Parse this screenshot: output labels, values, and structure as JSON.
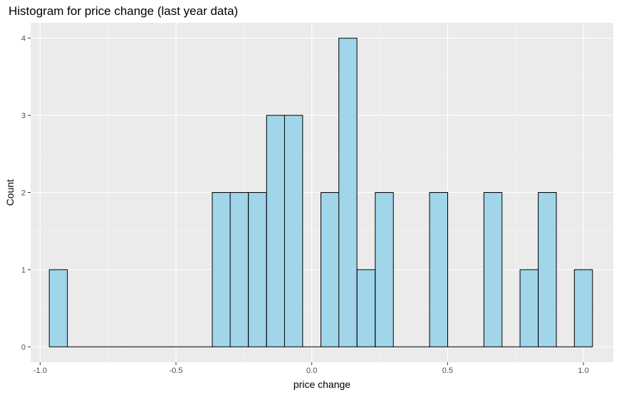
{
  "chart_data": {
    "type": "bar",
    "title": "Histogram for price change (last year data)",
    "xlabel": "price change",
    "ylabel": "Count",
    "bin_width": 0.0667,
    "bins": [
      {
        "x": -0.933,
        "count": 1
      },
      {
        "x": -0.867,
        "count": 0
      },
      {
        "x": -0.8,
        "count": 0
      },
      {
        "x": -0.733,
        "count": 0
      },
      {
        "x": -0.667,
        "count": 0
      },
      {
        "x": -0.6,
        "count": 0
      },
      {
        "x": -0.533,
        "count": 0
      },
      {
        "x": -0.467,
        "count": 0
      },
      {
        "x": -0.4,
        "count": 0
      },
      {
        "x": -0.333,
        "count": 2
      },
      {
        "x": -0.267,
        "count": 2
      },
      {
        "x": -0.2,
        "count": 2
      },
      {
        "x": -0.133,
        "count": 3
      },
      {
        "x": -0.067,
        "count": 3
      },
      {
        "x": 0.0,
        "count": 0
      },
      {
        "x": 0.067,
        "count": 2
      },
      {
        "x": 0.133,
        "count": 4
      },
      {
        "x": 0.2,
        "count": 1
      },
      {
        "x": 0.267,
        "count": 2
      },
      {
        "x": 0.333,
        "count": 0
      },
      {
        "x": 0.4,
        "count": 0
      },
      {
        "x": 0.467,
        "count": 2
      },
      {
        "x": 0.533,
        "count": 0
      },
      {
        "x": 0.6,
        "count": 0
      },
      {
        "x": 0.667,
        "count": 2
      },
      {
        "x": 0.733,
        "count": 0
      },
      {
        "x": 0.8,
        "count": 1
      },
      {
        "x": 0.867,
        "count": 2
      },
      {
        "x": 0.933,
        "count": 0
      },
      {
        "x": 1.0,
        "count": 1
      }
    ],
    "xlim": [
      -1.035,
      1.11
    ],
    "ylim": [
      -0.2,
      4.2
    ],
    "x_ticks": [
      {
        "value": -1.0,
        "label": "-1.0"
      },
      {
        "value": -0.5,
        "label": "-0.5"
      },
      {
        "value": 0.0,
        "label": "0.0"
      },
      {
        "value": 0.5,
        "label": "0.5"
      },
      {
        "value": 1.0,
        "label": "1.0"
      }
    ],
    "y_ticks": [
      {
        "value": 0,
        "label": "0"
      },
      {
        "value": 1,
        "label": "1"
      },
      {
        "value": 2,
        "label": "2"
      },
      {
        "value": 3,
        "label": "3"
      },
      {
        "value": 4,
        "label": "4"
      }
    ],
    "grid": true,
    "colors": {
      "bar_fill": "#a0d5ea",
      "bar_outline": "#000000",
      "panel_background": "#ebebeb",
      "grid_major": "#ffffff",
      "grid_minor": "#f5f5f5"
    }
  }
}
